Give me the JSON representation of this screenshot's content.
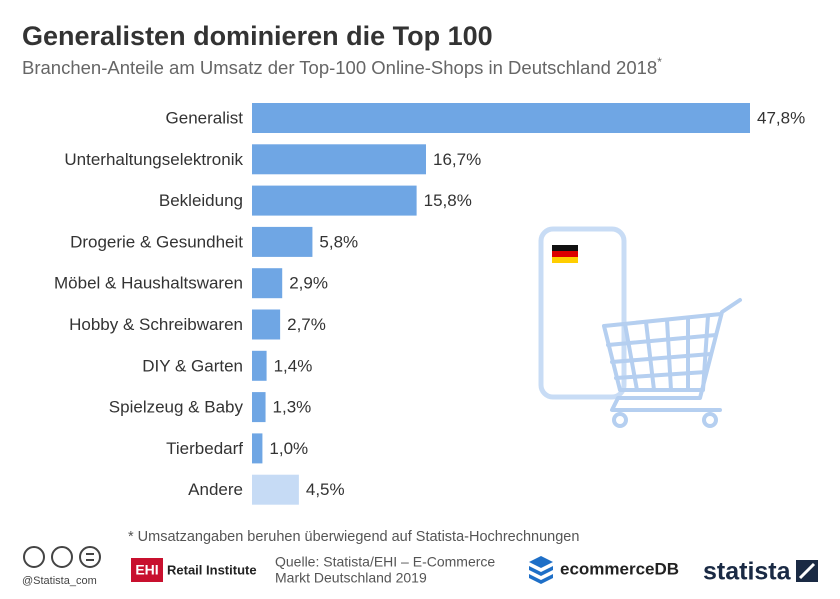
{
  "chart_data": {
    "type": "bar",
    "title": "Generalisten dominieren die Top 100",
    "subtitle": "Branchen-Anteile am Umsatz der Top-100 Online-Shops in Deutschland 2018",
    "subtitle_mark": "*",
    "categories": [
      "Generalist",
      "Unterhaltungselektronik",
      "Bekleidung",
      "Drogerie & Gesundheit",
      "Möbel & Haushaltswaren",
      "Hobby & Schreibwaren",
      "DIY & Garten",
      "Spielzeug & Baby",
      "Tierbedarf",
      "Andere"
    ],
    "values": [
      47.8,
      16.7,
      15.8,
      5.8,
      2.9,
      2.7,
      1.4,
      1.3,
      1.0,
      4.5
    ],
    "value_labels": [
      "47,8%",
      "16,7%",
      "15,8%",
      "5,8%",
      "2,9%",
      "2,7%",
      "1,4%",
      "1,3%",
      "1,0%",
      "4,5%"
    ],
    "colors": [
      "#6fa6e4",
      "#6fa6e4",
      "#6fa6e4",
      "#6fa6e4",
      "#6fa6e4",
      "#6fa6e4",
      "#6fa6e4",
      "#6fa6e4",
      "#6fa6e4",
      "#c6dbf5"
    ],
    "footnote": "* Umsatzangaben beruhen überwiegend auf Statista-Hochrechnungen",
    "handle": "@Statista_com",
    "partner_short": "EHI",
    "partner": "Retail Institute",
    "source_line1": "Quelle: Statista/EHI – E-Commerce",
    "source_line2": "Markt Deutschland 2019",
    "brand2": "ecommerceDB",
    "brand": "statista"
  }
}
